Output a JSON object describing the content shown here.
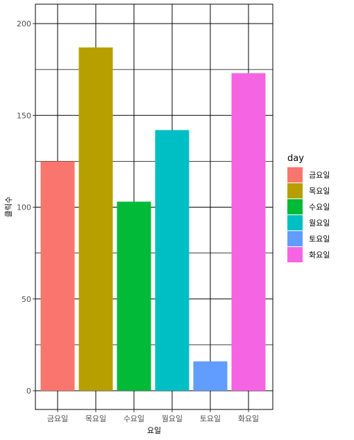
{
  "chart_data": {
    "type": "bar",
    "title": "",
    "xlabel": "요일",
    "ylabel": "클릭수",
    "categories": [
      "금요일",
      "목요일",
      "수요일",
      "월요일",
      "토요일",
      "화요일"
    ],
    "values": [
      125,
      187,
      103,
      142,
      16,
      173
    ],
    "colors": [
      "#F8766D",
      "#B79F00",
      "#00BA38",
      "#00BFC4",
      "#619CFF",
      "#F564E3"
    ],
    "ylim": [
      0,
      210
    ],
    "yticks": [
      0,
      50,
      100,
      150,
      200
    ],
    "grid": true,
    "legend": {
      "title": "day",
      "position": "right",
      "items": [
        "금요일",
        "목요일",
        "수요일",
        "월요일",
        "토요일",
        "화요일"
      ]
    }
  }
}
